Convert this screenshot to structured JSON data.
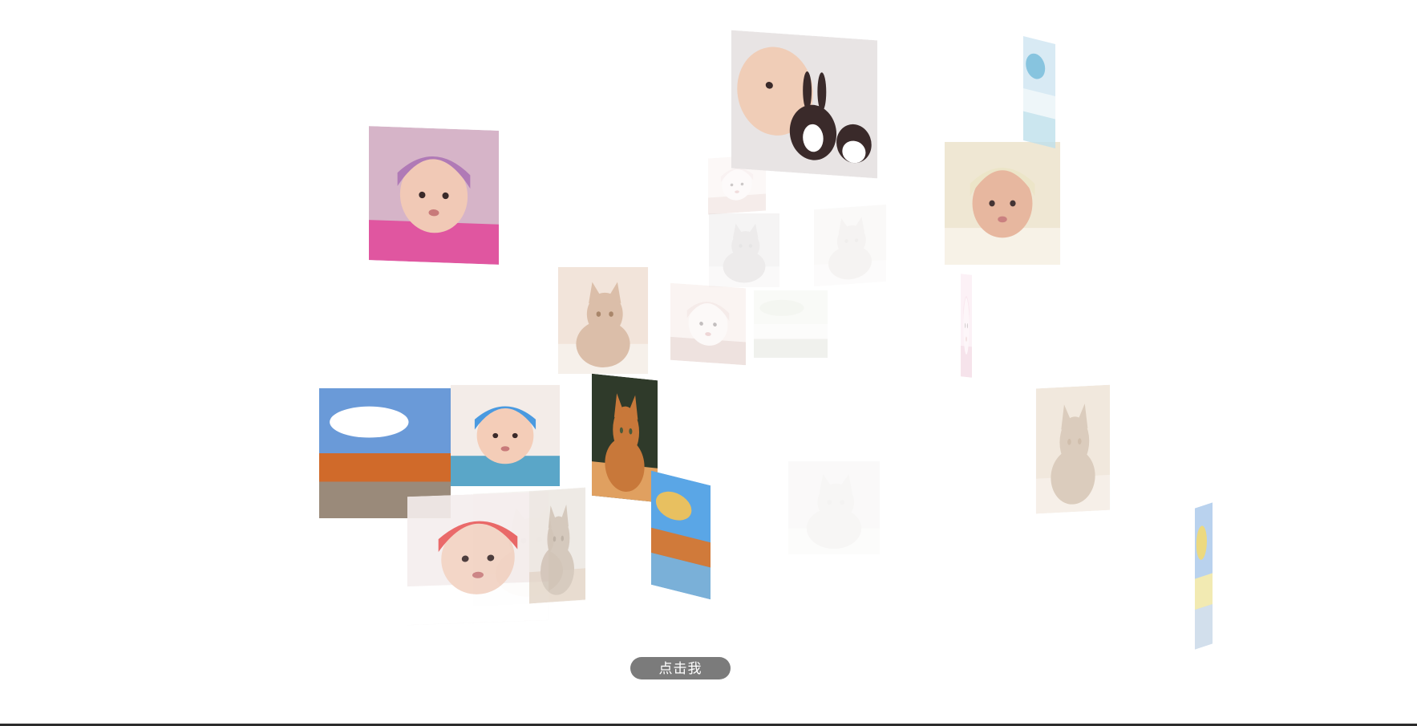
{
  "button": {
    "label": "点击我"
  },
  "colors": {
    "background": "#ffffff",
    "button_bg": "#7b7b7b",
    "button_text": "#ffffff",
    "bottom_bar": "#2b2b2b"
  },
  "photos": [
    {
      "name": "baby-pink-hat-photo",
      "icon": "baby-photo",
      "opacity": 1.0,
      "colors": [
        "#d6b4c8",
        "#b07ab6",
        "#f1c9b6",
        "#e056a0"
      ]
    },
    {
      "name": "baby-bunny-kitten-photo",
      "icon": "baby-bunny-photo",
      "opacity": 1.0,
      "colors": [
        "#e8e4e4",
        "#f0cdb7",
        "#3a2a2a",
        "#ffffff"
      ]
    },
    {
      "name": "sleeping-baby-knit-hat-photo",
      "icon": "baby-photo",
      "opacity": 0.95,
      "colors": [
        "#efe6d1",
        "#ece4c6",
        "#e6b49a",
        "#f7f2e6"
      ]
    },
    {
      "name": "sea-strip-photo",
      "icon": "landscape-photo",
      "opacity": 0.8,
      "colors": [
        "#cfe6f2",
        "#6ab6d8",
        "#eaf4f8",
        "#bfe0ec"
      ]
    },
    {
      "name": "kitten-lying-photo",
      "icon": "kitten-photo",
      "opacity": 0.9,
      "colors": [
        "#f1e2d6",
        "#d8b8a0",
        "#f6efe8",
        "#a07a5a"
      ]
    },
    {
      "name": "sky-road-autumn-photo",
      "icon": "landscape-photo",
      "opacity": 1.0,
      "colors": [
        "#6a9ad8",
        "#ffffff",
        "#d06a2a",
        "#9a8a7a"
      ]
    },
    {
      "name": "baby-blue-hat-photo",
      "icon": "baby-photo",
      "opacity": 1.0,
      "colors": [
        "#f3ece8",
        "#4a9ae0",
        "#f4cdb8",
        "#5aa6c8"
      ]
    },
    {
      "name": "orange-kitten-photo",
      "icon": "kitten-photo",
      "opacity": 1.0,
      "colors": [
        "#2f3a2a",
        "#c8783a",
        "#e0a060",
        "#4a5a3a"
      ]
    },
    {
      "name": "autumn-lake-photo",
      "icon": "landscape-photo",
      "opacity": 1.0,
      "colors": [
        "#5aa6e6",
        "#e8c060",
        "#d07a3a",
        "#7ab0d8"
      ]
    },
    {
      "name": "baby-white-hat-photo",
      "icon": "baby-photo",
      "opacity": 0.9,
      "colors": [
        "#f5eeee",
        "#e85a5a",
        "#f2d2c2",
        "#ffffff"
      ]
    },
    {
      "name": "cat-face-photo",
      "icon": "kitten-photo",
      "opacity": 0.7,
      "colors": [
        "#ece6e0",
        "#c8b8a8",
        "#e0d0c0",
        "#a89888"
      ]
    },
    {
      "name": "two-kittens-photo",
      "icon": "kitten-photo",
      "opacity": 0.65,
      "colors": [
        "#eadccb",
        "#c9b29a",
        "#f2e8dc",
        "#b89c80"
      ]
    },
    {
      "name": "field-strip-photo",
      "icon": "landscape-photo",
      "opacity": 0.8,
      "colors": [
        "#a8c8ea",
        "#e8d060",
        "#f0e6a0",
        "#c8d8e8"
      ]
    },
    {
      "name": "faded-baby-photo-1",
      "icon": "baby-photo",
      "opacity": 0.25,
      "colors": [
        "#f4e6e0",
        "#e8cccc",
        "#f8eeee",
        "#d8b8b0"
      ]
    },
    {
      "name": "faded-kittens-photo",
      "icon": "kitten-photo",
      "opacity": 0.2,
      "colors": [
        "#d0cccc",
        "#a8a0a0",
        "#e8e4e4",
        "#888080"
      ]
    },
    {
      "name": "faded-white-cat-photo",
      "icon": "kitten-photo",
      "opacity": 0.2,
      "colors": [
        "#e8e4e0",
        "#d0c8c0",
        "#f4f0ec",
        "#b8b0a8"
      ]
    },
    {
      "name": "faded-baby-photo-2",
      "icon": "baby-photo",
      "opacity": 0.3,
      "colors": [
        "#f0dcd6",
        "#e0c0b8",
        "#f8ecea",
        "#c8a098"
      ]
    },
    {
      "name": "faded-green-photo",
      "icon": "landscape-photo",
      "opacity": 0.18,
      "colors": [
        "#e0e6d6",
        "#c8d0b8",
        "#f0f2ea",
        "#b0b8a0"
      ]
    },
    {
      "name": "faded-pink-strip-photo",
      "icon": "baby-photo",
      "opacity": 0.35,
      "colors": [
        "#f8d8e6",
        "#f0c0d4",
        "#fce8f0",
        "#e8b0c8"
      ]
    },
    {
      "name": "faded-cat-sitting-photo",
      "icon": "kitten-photo",
      "opacity": 0.12,
      "colors": [
        "#d8d4d0",
        "#c0b8b0",
        "#ece8e4",
        "#a8a098"
      ]
    },
    {
      "name": "faded-cat-overlay-photo",
      "icon": "kitten-photo",
      "opacity": 0.35,
      "colors": [
        "#e8e0d8",
        "#c8b8a8",
        "#f4eee8",
        "#a89078"
      ]
    }
  ]
}
